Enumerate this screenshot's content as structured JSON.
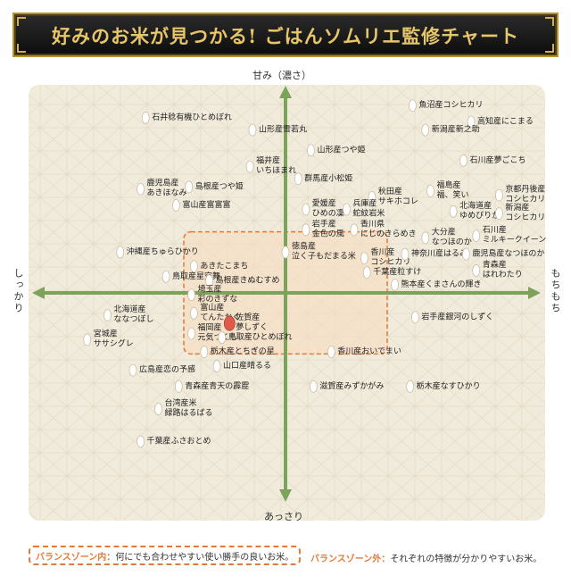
{
  "title": "好みのお米が見つかる! ごはんソムリエ監修チャート",
  "chart_data": {
    "type": "scatter",
    "axes": {
      "top": "甘み（濃さ）",
      "bottom": "あっさり",
      "left": "しっかり",
      "right": "もちもち"
    },
    "xlim": [
      -100,
      100
    ],
    "ylim": [
      -100,
      100
    ],
    "grid": false,
    "balance_zone": {
      "x": [
        -40,
        40
      ],
      "y": [
        -30,
        30
      ]
    },
    "legend": {
      "inside_key": "バランスゾーン内：",
      "inside_text": "何にでも合わせやすい使い勝手の良いお米。",
      "outside_key": "バランスゾーン外：",
      "outside_text": "それぞれの特徴が分かりやすいお米。"
    },
    "points": [
      {
        "label": "魚沼産コシヒカリ",
        "x": 50,
        "y": 92
      },
      {
        "label": "高知産にこまる",
        "x": 73,
        "y": 84
      },
      {
        "label": "新潟産新之助",
        "x": 55,
        "y": 80
      },
      {
        "label": "石井稔有機ひとめぼれ",
        "x": -55,
        "y": 86
      },
      {
        "label": "山形産雪若丸",
        "x": -13,
        "y": 80
      },
      {
        "label": "山形産つや姫",
        "x": 10,
        "y": 70
      },
      {
        "label": "石川産夢ごこち",
        "x": 70,
        "y": 65
      },
      {
        "label": "福井産\nいちほまれ",
        "x": -14,
        "y": 62
      },
      {
        "label": "群馬産小松姫",
        "x": 5,
        "y": 56
      },
      {
        "label": "鹿児島産\nあきほなみ",
        "x": -57,
        "y": 51
      },
      {
        "label": "島根産つや姫",
        "x": -38,
        "y": 52
      },
      {
        "label": "秋田産\nサキホコレ",
        "x": 34,
        "y": 47
      },
      {
        "label": "福島産\n福、笑い",
        "x": 57,
        "y": 50
      },
      {
        "label": "京都丹後産\nコシヒカリ",
        "x": 84,
        "y": 48
      },
      {
        "label": "富山産富富富",
        "x": -43,
        "y": 43
      },
      {
        "label": "愛媛産\nひめの凜",
        "x": 8,
        "y": 41
      },
      {
        "label": "兵庫産\n蛇紋岩米",
        "x": 24,
        "y": 41
      },
      {
        "label": "北海道産\nゆめぴりか",
        "x": 66,
        "y": 40
      },
      {
        "label": "新潟産\nコシヒカリ",
        "x": 84,
        "y": 39
      },
      {
        "label": "岩手産\n金色の風",
        "x": 8,
        "y": 31
      },
      {
        "label": "香川県\nにじのきらめき",
        "x": 27,
        "y": 31
      },
      {
        "label": "大分産\nなつほのか",
        "x": 55,
        "y": 27
      },
      {
        "label": "石川産\nミルキークイーン",
        "x": 75,
        "y": 28
      },
      {
        "label": "沖縄産ちゅらひかり",
        "x": -65,
        "y": 20
      },
      {
        "label": "徳島産\n泣く子もだまる米",
        "x": 0,
        "y": 20
      },
      {
        "label": "香川産\nコシヒカリ",
        "x": 31,
        "y": 17
      },
      {
        "label": "神奈川産はるみ",
        "x": 47,
        "y": 19
      },
      {
        "label": "鹿児島産なつほのか",
        "x": 71,
        "y": 19
      },
      {
        "label": "あきたこまち",
        "x": -36,
        "y": 13
      },
      {
        "label": "千葉産粒すけ",
        "x": 32,
        "y": 10
      },
      {
        "label": "青森産\nはれわたり",
        "x": 75,
        "y": 11
      },
      {
        "label": "鳥取産星空舞",
        "x": -47,
        "y": 8
      },
      {
        "label": "島根産きぬむすめ",
        "x": -30,
        "y": 6
      },
      {
        "label": "熊本産くまさんの輝き",
        "x": 43,
        "y": 4
      },
      {
        "label": "埼玉産\n彩のきずな",
        "x": -37,
        "y": -1
      },
      {
        "label": "富山産\nてんたかく",
        "x": -36,
        "y": -10
      },
      {
        "label": "佐賀産\n夢しずく",
        "x": -22,
        "y": -15
      },
      {
        "label": "北海道産\nななつぼし",
        "x": -70,
        "y": -11
      },
      {
        "label": "岩手産銀河のしずく",
        "x": 51,
        "y": -12
      },
      {
        "label": "福岡産\n元気つくし",
        "x": -37,
        "y": -20
      },
      {
        "label": "鳥取産ひとめぼれ",
        "x": -25,
        "y": -22
      },
      {
        "label": "宮城産\nササシグレ",
        "x": -78,
        "y": -23
      },
      {
        "label": "栃木産とちぎの星",
        "x": -32,
        "y": -29
      },
      {
        "label": "香川産おいでまい",
        "x": 18,
        "y": -29
      },
      {
        "label": "広島産恋の予感",
        "x": -60,
        "y": -38
      },
      {
        "label": "山口産晴るる",
        "x": -27,
        "y": -36
      },
      {
        "label": "青森産青天の霹靂",
        "x": -42,
        "y": -46
      },
      {
        "label": "滋賀産みずかがみ",
        "x": 11,
        "y": -46
      },
      {
        "label": "栃木産なすひかり",
        "x": 49,
        "y": -46
      },
      {
        "label": "台湾産米\n緑路はるばる",
        "x": -50,
        "y": -57
      },
      {
        "label": "千葉産ふさおとめ",
        "x": -57,
        "y": -73
      }
    ]
  },
  "colors": {
    "background": "#f1ebdc",
    "axis": "#7ca25c",
    "zone_fill": "#f7dcc0",
    "zone_border": "#e27b3a",
    "dot": "#ffffff",
    "highlight_dot": "#dd5a4c",
    "gold": "#e7c66a"
  },
  "highlight_label": "佐賀産\n夢しずく"
}
